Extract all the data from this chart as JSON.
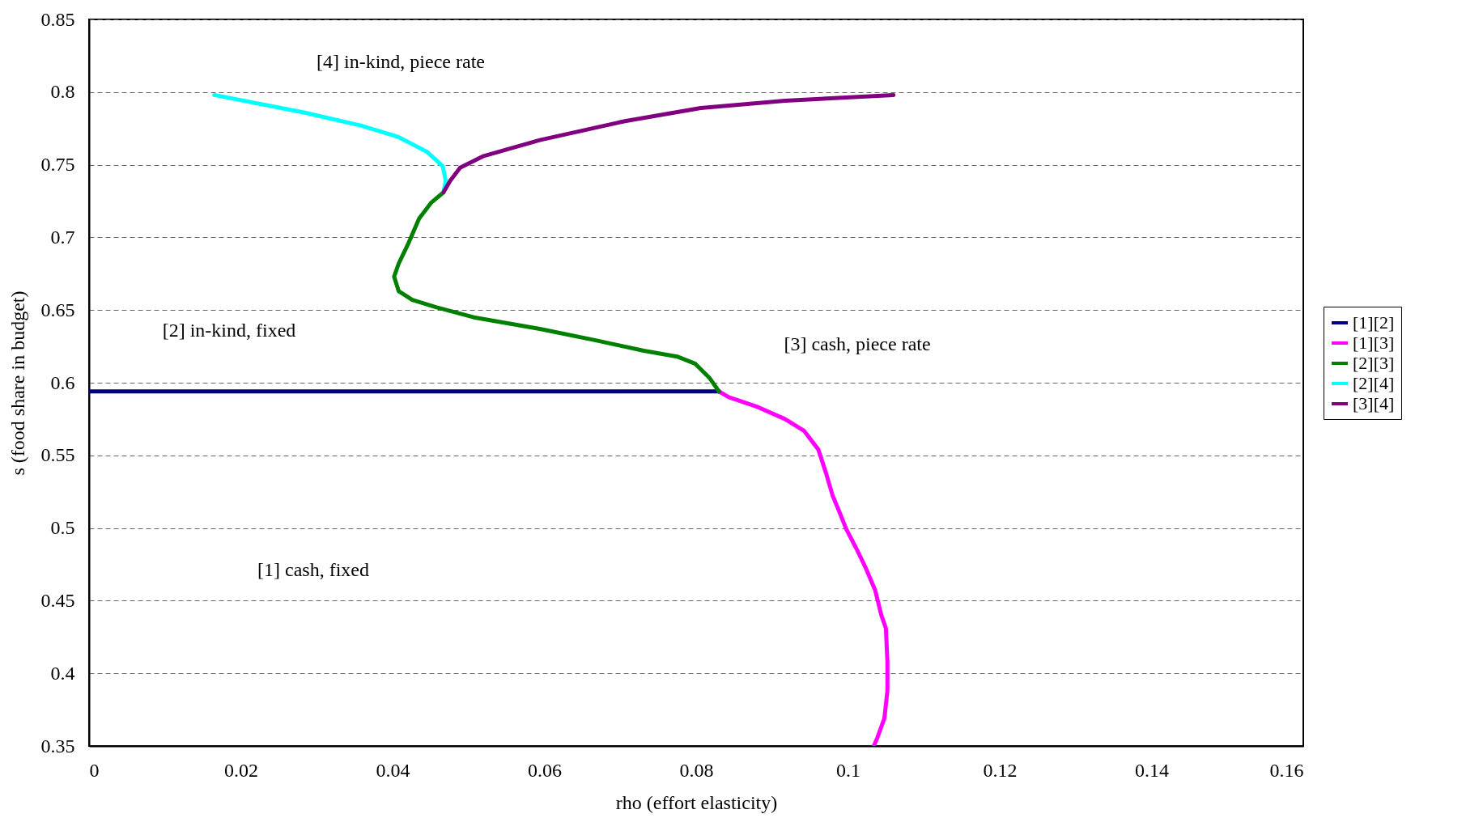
{
  "chart_data": {
    "type": "line",
    "xlabel": "rho (effort elasticity)",
    "ylabel": "s (food share in budget)",
    "xlim": [
      0,
      0.16
    ],
    "xticks": [
      0,
      0.02,
      0.04,
      0.06,
      0.08,
      0.1,
      0.12,
      0.14,
      0.16
    ],
    "ylim": [
      0.35,
      0.85
    ],
    "yticks": [
      0.35,
      0.4,
      0.45,
      0.5,
      0.55,
      0.6,
      0.65,
      0.7,
      0.75,
      0.8,
      0.85
    ],
    "grid": "y",
    "legend": "right",
    "line_style": "solid",
    "marker": "none",
    "series": [
      {
        "name": "[1][2]",
        "color": "#000080",
        "x": [
          0,
          0.083
        ],
        "values": [
          0.594,
          0.594
        ]
      },
      {
        "name": "[1][3]",
        "color": "#ff00ff",
        "x": [
          0.083,
          0.0843,
          0.088,
          0.0917,
          0.0942,
          0.0961,
          0.0971,
          0.098,
          0.0988,
          0.0998,
          0.1011,
          0.1023,
          0.1036,
          0.1044,
          0.105,
          0.1052,
          0.1052,
          0.1048,
          0.1039,
          0.1034
        ],
        "values": [
          0.594,
          0.59,
          0.5835,
          0.575,
          0.567,
          0.554,
          0.538,
          0.522,
          0.512,
          0.499,
          0.486,
          0.473,
          0.457,
          0.44,
          0.431,
          0.408,
          0.388,
          0.369,
          0.356,
          0.35
        ]
      },
      {
        "name": "[2][3]",
        "color": "#008000",
        "x": [
          0.083,
          0.0818,
          0.0799,
          0.0775,
          0.0731,
          0.0669,
          0.0594,
          0.0507,
          0.0457,
          0.0426,
          0.0408,
          0.0402,
          0.0408,
          0.042,
          0.0435,
          0.0451,
          0.0467
        ],
        "values": [
          0.594,
          0.603,
          0.613,
          0.618,
          0.622,
          0.629,
          0.637,
          0.645,
          0.652,
          0.657,
          0.663,
          0.673,
          0.682,
          0.695,
          0.713,
          0.724,
          0.731
        ]
      },
      {
        "name": "[2][4]",
        "color": "#00ffff",
        "x": [
          0.0467,
          0.047,
          0.0466,
          0.0445,
          0.0408,
          0.0358,
          0.0283,
          0.0165
        ],
        "values": [
          0.731,
          0.739,
          0.749,
          0.759,
          0.769,
          0.777,
          0.786,
          0.798
        ]
      },
      {
        "name": "[3][4]",
        "color": "#800080",
        "x": [
          0.0467,
          0.0476,
          0.0489,
          0.052,
          0.0594,
          0.0706,
          0.0806,
          0.0917,
          0.106
        ],
        "values": [
          0.731,
          0.739,
          0.748,
          0.756,
          0.767,
          0.78,
          0.789,
          0.794,
          0.798
        ]
      }
    ],
    "annotations": [
      "[4] in-kind, piece rate",
      "[2] in-kind, fixed",
      "[3] cash, piece rate",
      "[1] cash, fixed"
    ]
  }
}
